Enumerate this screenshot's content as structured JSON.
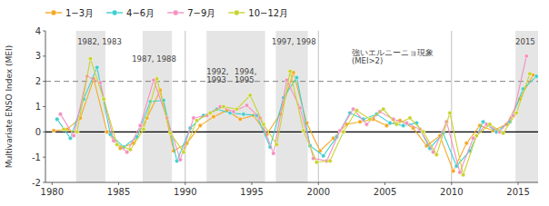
{
  "chart_data": {
    "type": "line",
    "ylabel": "Multivariate ENSO Index (MEI)",
    "xlim": [
      1979.5,
      2016.5
    ],
    "ylim": [
      -2.0,
      4.0
    ],
    "yticks": [
      -2,
      -1,
      0,
      1,
      2,
      3,
      4
    ],
    "xticks": [
      1980,
      1985,
      1990,
      1995,
      2000,
      2005,
      2010,
      2015
    ],
    "grid": false,
    "legend": "top",
    "marker": "circle",
    "line_style": "solid",
    "reference_lines": [
      {
        "y": 0.0,
        "line_style": "solid",
        "color": "#000000"
      },
      {
        "y": 2.0,
        "line_style": "dashed",
        "color": "#808080"
      }
    ],
    "shaded_regions": [
      [
        1981.8,
        1984.0
      ],
      [
        1986.8,
        1989.0
      ],
      [
        1991.6,
        1996.0
      ],
      [
        1996.8,
        1999.2
      ],
      [
        2014.8,
        2016.5
      ]
    ],
    "vertical_lines": [
      1990,
      2000,
      2010
    ],
    "annotations": [
      {
        "text": "1982, 1983",
        "x": 1981.9,
        "y": 3.72
      },
      {
        "text": "1987, 1988",
        "x": 1986.0,
        "y": 3.05
      },
      {
        "text": "1992,\n1993",
        "x": 1991.6,
        "y": 2.55
      },
      {
        "text": "1994,\n1995",
        "x": 1993.7,
        "y": 2.55
      },
      {
        "text": "1997, 1998",
        "x": 1996.5,
        "y": 3.72
      },
      {
        "text": "強いエルニーニョ現象\n(MEI>2)",
        "x": 2002.5,
        "y": 3.3
      },
      {
        "text": "2015",
        "x": 2014.8,
        "y": 3.72
      }
    ],
    "series": [
      {
        "name": "1−3月",
        "color": "#f5a823",
        "x": [
          1980.125,
          1981.125,
          1982.125,
          1983.125,
          1984.125,
          1985.125,
          1986.125,
          1987.125,
          1988.125,
          1989.125,
          1990.125,
          1991.125,
          1992.125,
          1993.125,
          1994.125,
          1995.125,
          1996.125,
          1997.125,
          1998.125,
          1999.125,
          2000.125,
          2001.125,
          2002.125,
          2003.125,
          2004.125,
          2005.125,
          2006.125,
          2007.125,
          2008.125,
          2009.125,
          2010.125,
          2011.125,
          2012.125,
          2013.125,
          2014.125,
          2015.125,
          2016.125
        ],
        "values": [
          0.05,
          0.1,
          0.55,
          2.1,
          0.0,
          -0.65,
          -0.45,
          0.55,
          1.65,
          -0.75,
          -0.45,
          0.25,
          0.6,
          0.85,
          0.5,
          0.65,
          -0.1,
          0.7,
          2.35,
          0.35,
          -0.75,
          -0.25,
          0.3,
          0.4,
          0.5,
          0.25,
          0.45,
          0.15,
          -0.55,
          -0.15,
          -1.55,
          -0.45,
          0.25,
          0.05,
          0.3,
          1.3,
          2.25
        ]
      },
      {
        "name": "4−6月",
        "color": "#3ecfcf",
        "x": [
          1980.375,
          1981.375,
          1982.375,
          1983.375,
          1984.375,
          1985.375,
          1986.375,
          1987.375,
          1988.375,
          1989.375,
          1990.375,
          1991.375,
          1992.375,
          1993.375,
          1994.375,
          1995.375,
          1996.375,
          1997.375,
          1998.375,
          1999.375,
          2000.375,
          2001.375,
          2002.375,
          2003.375,
          2004.375,
          2005.375,
          2006.375,
          2007.375,
          2008.375,
          2009.375,
          2010.375,
          2011.375,
          2012.375,
          2013.375,
          2014.375,
          2015.375,
          2016.375
        ],
        "values": [
          0.5,
          -0.25,
          1.3,
          2.55,
          -0.1,
          -0.6,
          -0.2,
          1.2,
          1.25,
          -1.15,
          0.15,
          0.65,
          0.9,
          0.75,
          0.7,
          0.65,
          -0.6,
          1.35,
          2.15,
          -0.55,
          -0.95,
          -0.2,
          0.75,
          0.5,
          0.7,
          0.35,
          0.25,
          0.35,
          -0.65,
          -0.05,
          -1.35,
          -0.75,
          0.4,
          0.0,
          0.4,
          1.7,
          2.2
        ]
      },
      {
        "name": "7−9月",
        "color": "#f590c0",
        "x": [
          1980.625,
          1981.625,
          1982.625,
          1983.625,
          1984.625,
          1985.625,
          1986.625,
          1987.625,
          1988.625,
          1989.625,
          1990.625,
          1991.625,
          1992.625,
          1993.625,
          1994.625,
          1995.625,
          1996.625,
          1997.625,
          1998.625,
          1999.625,
          2000.625,
          2001.625,
          2002.625,
          2003.625,
          2004.625,
          2005.625,
          2006.625,
          2007.625,
          2008.625,
          2009.625,
          2010.625,
          2011.625,
          2012.625,
          2013.625,
          2014.625,
          2015.625
        ],
        "values": [
          0.7,
          -0.15,
          2.2,
          1.95,
          -0.35,
          -0.8,
          0.25,
          2.05,
          0.55,
          -1.1,
          0.55,
          0.65,
          1.0,
          0.8,
          1.05,
          0.55,
          -0.85,
          2.05,
          0.95,
          -1.05,
          -1.15,
          0.05,
          0.9,
          0.3,
          0.8,
          0.5,
          0.35,
          0.1,
          -0.8,
          0.4,
          -1.6,
          -0.25,
          0.3,
          0.0,
          0.65,
          3.0
        ]
      },
      {
        "name": "10−12月",
        "color": "#c8d430",
        "x": [
          1980.875,
          1981.875,
          1982.875,
          1983.875,
          1984.875,
          1985.875,
          1986.875,
          1987.875,
          1988.875,
          1989.875,
          1990.875,
          1991.875,
          1992.875,
          1993.875,
          1994.875,
          1995.875,
          1996.875,
          1997.875,
          1998.875,
          1999.875,
          2000.875,
          2001.875,
          2002.875,
          2003.875,
          2004.875,
          2005.875,
          2006.875,
          2007.875,
          2008.875,
          2009.875,
          2010.875,
          2011.875,
          2012.875,
          2013.875,
          2014.875,
          2015.875
        ],
        "values": [
          0.1,
          0.0,
          2.9,
          1.3,
          -0.5,
          -0.7,
          0.1,
          2.1,
          -0.05,
          -0.8,
          0.45,
          0.75,
          1.0,
          0.9,
          1.45,
          0.3,
          -0.5,
          2.4,
          0.05,
          -1.2,
          -1.15,
          0.0,
          0.85,
          0.5,
          0.9,
          0.3,
          0.55,
          0.0,
          -0.9,
          0.75,
          -1.7,
          -0.15,
          0.3,
          -0.05,
          0.75,
          2.3
        ]
      }
    ]
  }
}
